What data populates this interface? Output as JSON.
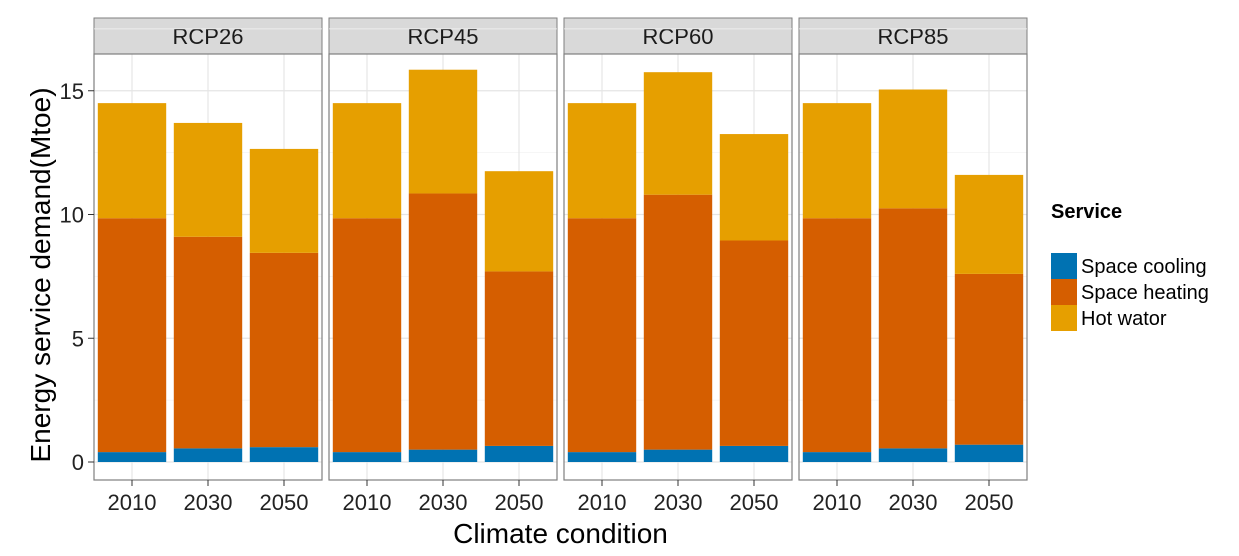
{
  "chart_data": {
    "type": "bar",
    "stacked": true,
    "facet_label": "",
    "xlabel": "Climate condition",
    "ylabel": "Energy service demand(Mtoe)",
    "ylim": [
      0,
      17.5
    ],
    "yticks": [
      0,
      5,
      10,
      15
    ],
    "grid": true,
    "legend_position": "right",
    "legend_title": "Service",
    "categories": [
      "2010",
      "2030",
      "2050"
    ],
    "colors": {
      "Space cooling": "#0072b2",
      "Space heating": "#d55e00",
      "Hot wator": "#e69f00"
    },
    "legend_order": [
      "Space cooling",
      "Space heating",
      "Hot wator"
    ],
    "panels": [
      {
        "name": "RCP26",
        "series": [
          {
            "name": "Space cooling",
            "values": [
              0.4,
              0.55,
              0.6
            ]
          },
          {
            "name": "Space heating",
            "values": [
              9.45,
              8.55,
              7.85
            ]
          },
          {
            "name": "Hot wator",
            "values": [
              4.65,
              4.6,
              4.2
            ]
          }
        ]
      },
      {
        "name": "RCP45",
        "series": [
          {
            "name": "Space cooling",
            "values": [
              0.4,
              0.5,
              0.65
            ]
          },
          {
            "name": "Space heating",
            "values": [
              9.45,
              10.35,
              7.05
            ]
          },
          {
            "name": "Hot wator",
            "values": [
              4.65,
              5.0,
              4.05
            ]
          }
        ]
      },
      {
        "name": "RCP60",
        "series": [
          {
            "name": "Space cooling",
            "values": [
              0.4,
              0.5,
              0.65
            ]
          },
          {
            "name": "Space heating",
            "values": [
              9.45,
              10.3,
              8.3
            ]
          },
          {
            "name": "Hot wator",
            "values": [
              4.65,
              4.95,
              4.3
            ]
          }
        ]
      },
      {
        "name": "RCP85",
        "series": [
          {
            "name": "Space cooling",
            "values": [
              0.4,
              0.55,
              0.7
            ]
          },
          {
            "name": "Space heating",
            "values": [
              9.45,
              9.7,
              6.9
            ]
          },
          {
            "name": "Hot wator",
            "values": [
              4.65,
              4.8,
              4.0
            ]
          }
        ]
      }
    ]
  }
}
